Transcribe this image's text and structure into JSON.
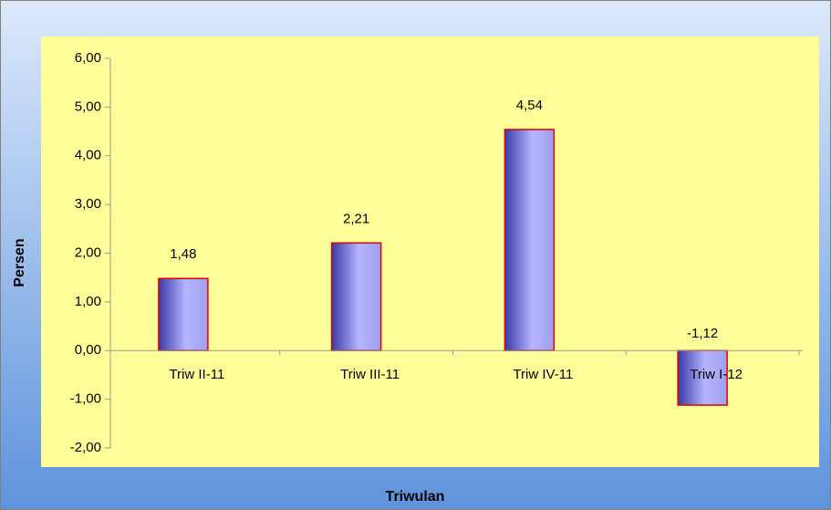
{
  "chart_data": {
    "type": "bar",
    "x_label": "Triwulan",
    "y_label": "Persen",
    "categories": [
      "Triw II-11",
      "Triw III-11",
      "Triw IV-11",
      "Triw I-12"
    ],
    "values": [
      1.48,
      2.21,
      4.54,
      -1.12
    ],
    "value_labels": [
      "1,48",
      "2,21",
      "4,54",
      "-1,12"
    ],
    "color": "#8f8fe8",
    "ylim": [
      -2,
      6
    ],
    "yticks": [
      {
        "value": -2,
        "label": "-2,00"
      },
      {
        "value": -1,
        "label": "-1,00"
      },
      {
        "value": 0,
        "label": "0,00"
      },
      {
        "value": 1,
        "label": "1,00"
      },
      {
        "value": 2,
        "label": "2,00"
      },
      {
        "value": 3,
        "label": "3,00"
      },
      {
        "value": 4,
        "label": "4,00"
      },
      {
        "value": 5,
        "label": "5,00"
      },
      {
        "value": 6,
        "label": "6,00"
      }
    ]
  }
}
